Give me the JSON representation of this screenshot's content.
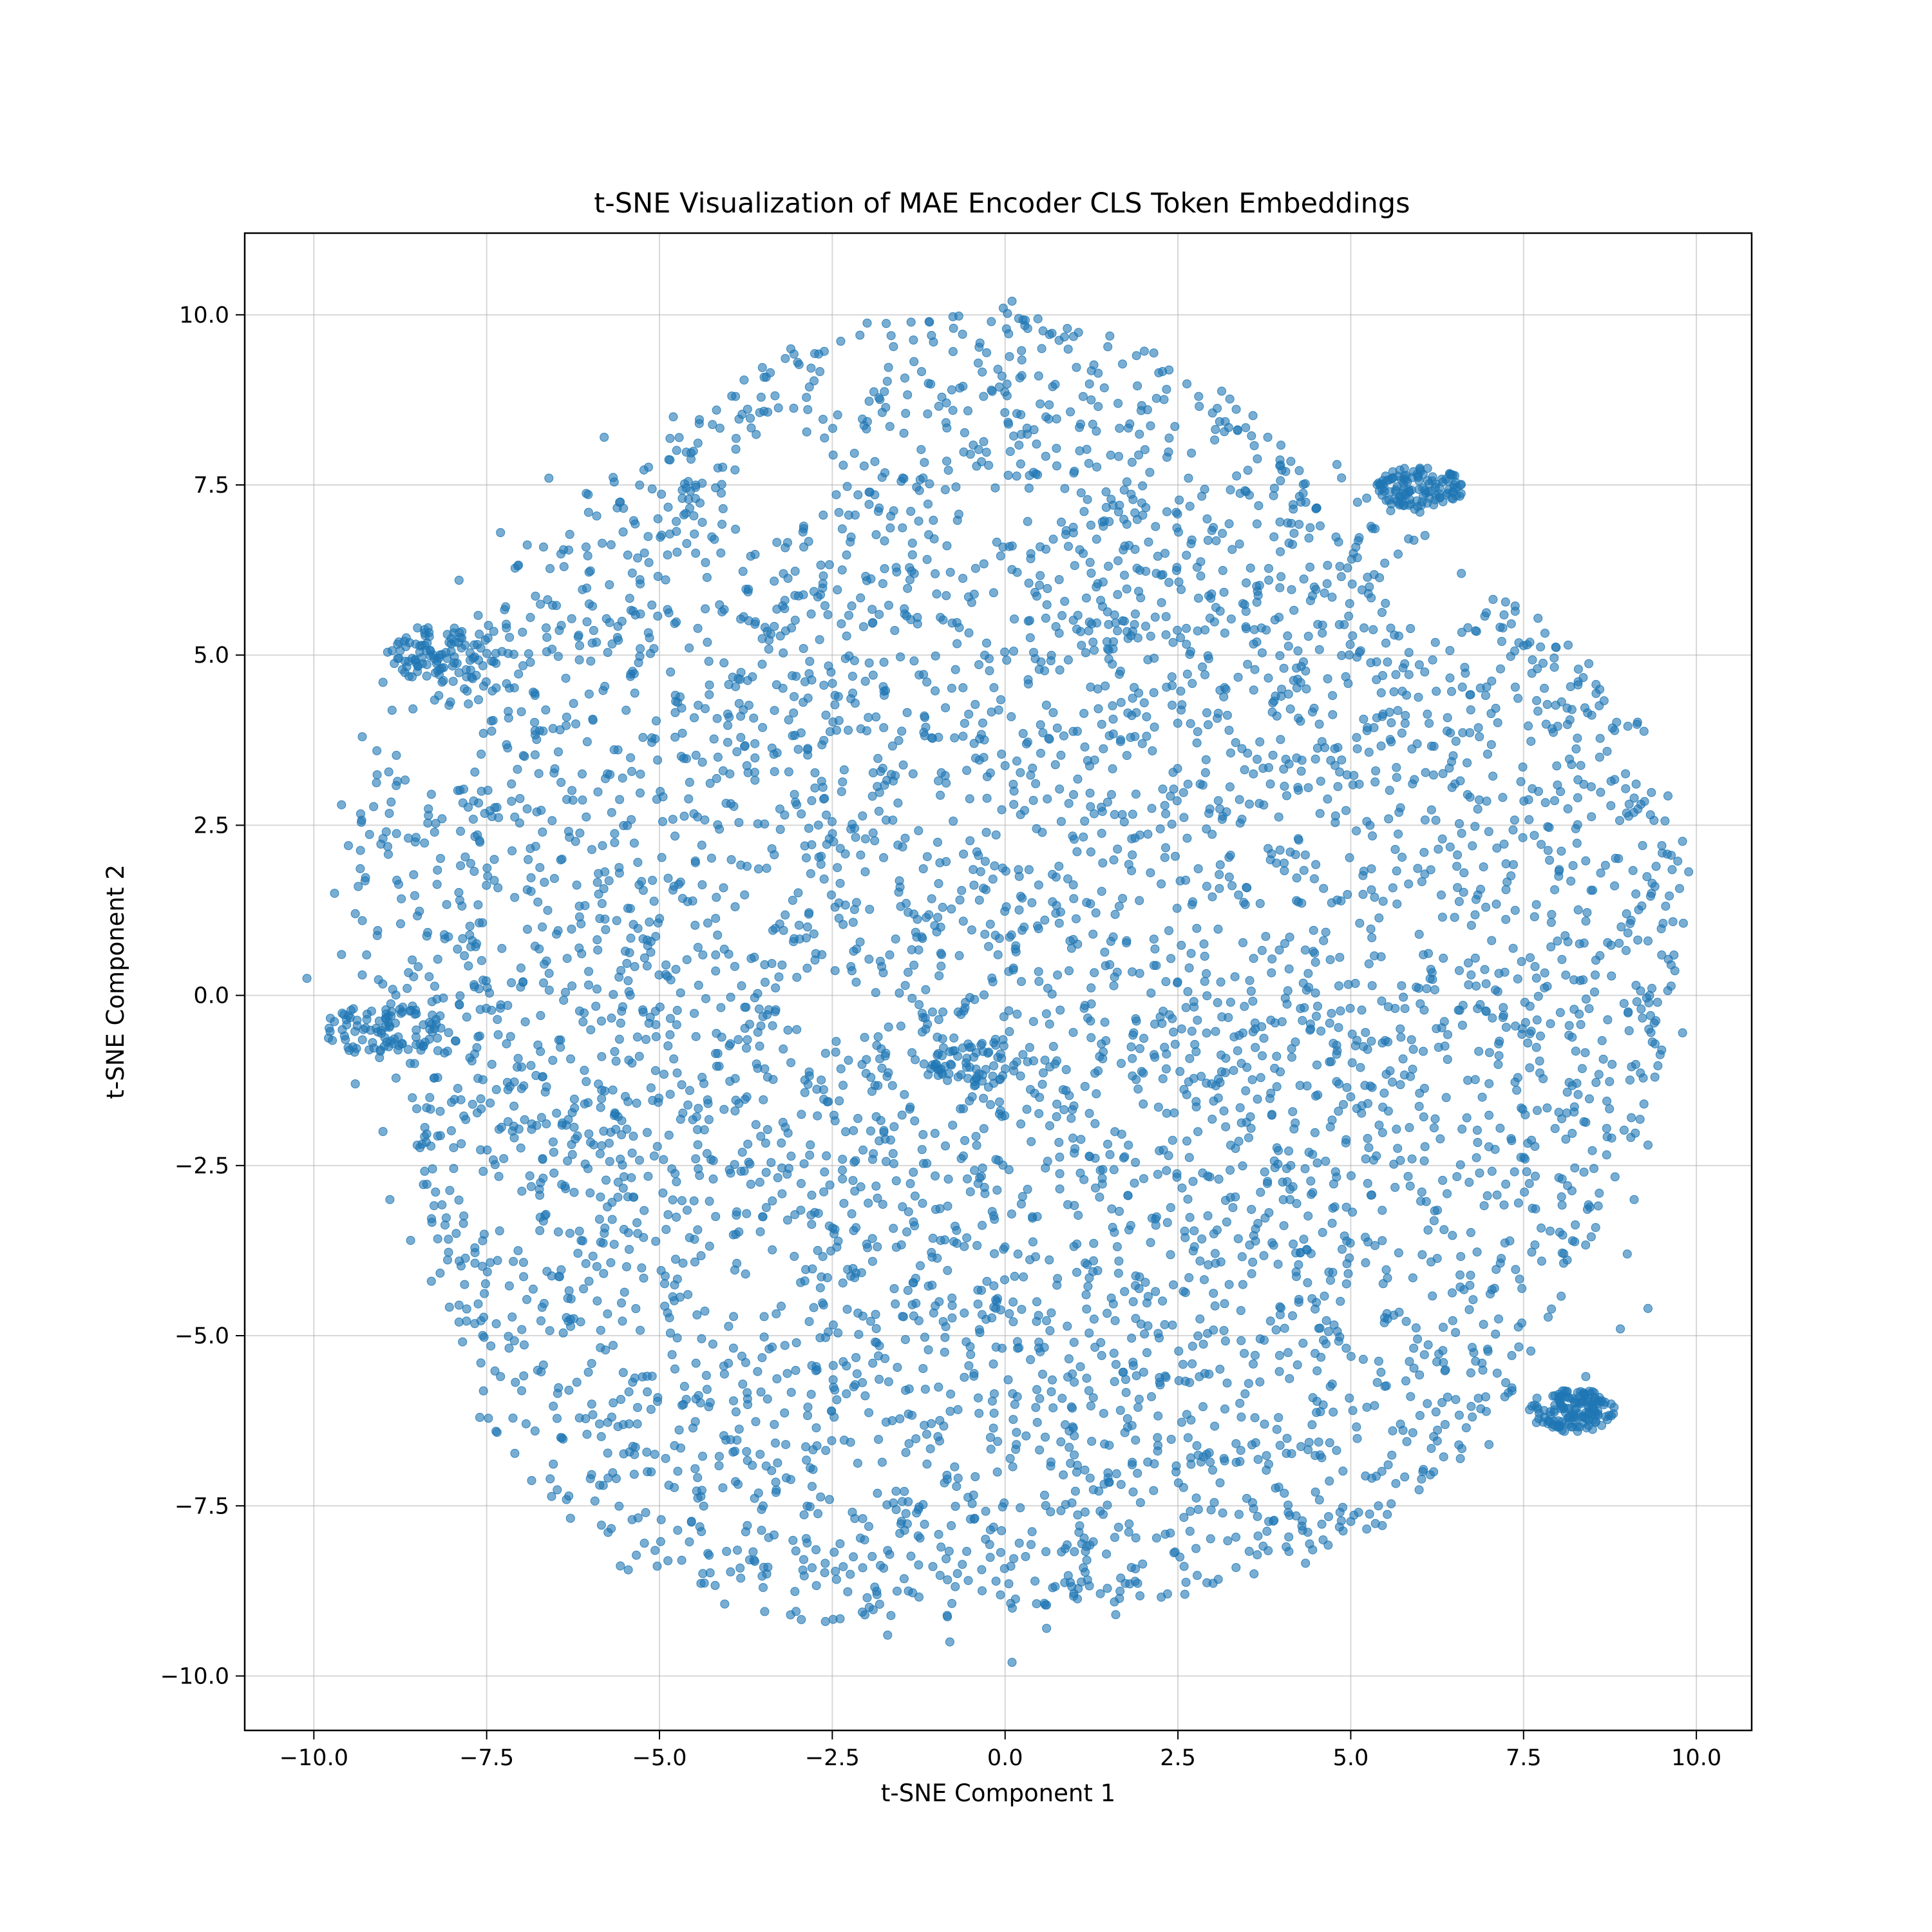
{
  "chart_data": {
    "type": "scatter",
    "title": "t-SNE Visualization of MAE Encoder CLS Token Embeddings",
    "xlabel": "t-SNE Component 1",
    "ylabel": "t-SNE Component 2",
    "xlim": [
      -11.0,
      10.8
    ],
    "ylim": [
      -10.8,
      11.2
    ],
    "xticks": [
      -10.0,
      -7.5,
      -5.0,
      -2.5,
      0.0,
      2.5,
      5.0,
      7.5,
      10.0
    ],
    "xtick_labels": [
      "−10.0",
      "−7.5",
      "−5.0",
      "−2.5",
      "0.0",
      "2.5",
      "5.0",
      "7.5",
      "10.0"
    ],
    "yticks": [
      -10.0,
      -7.5,
      -5.0,
      -2.5,
      0.0,
      2.5,
      5.0,
      7.5,
      10.0
    ],
    "ytick_labels": [
      "−10.0",
      "−7.5",
      "−5.0",
      "−2.5",
      "0.0",
      "2.5",
      "5.0",
      "7.5",
      "10.0"
    ],
    "grid": true,
    "marker_color": "#1f77b4",
    "marker_alpha": 0.6,
    "series": [
      {
        "points": [
          [
            -10.1,
            0.25
          ],
          [
            9.8,
            -0.55
          ],
          [
            0.1,
            -9.8
          ],
          [
            -7.6,
            -6.2
          ],
          [
            0.1,
            10.2
          ],
          [
            -9.7,
            1.5
          ],
          [
            -9.4,
            1.2
          ],
          [
            -9.6,
            0.6
          ],
          [
            -9.3,
            0.3
          ],
          [
            -9.5,
            -0.3
          ],
          [
            -9.2,
            -0.8
          ],
          [
            -9.4,
            -1.3
          ],
          [
            -9.0,
            -2.0
          ],
          [
            -8.9,
            -3.0
          ],
          [
            -8.6,
            -3.6
          ],
          [
            -8.3,
            -4.2
          ],
          [
            -7.9,
            -4.8
          ],
          [
            -7.3,
            -5.6
          ],
          [
            -6.8,
            -6.4
          ],
          [
            -6.0,
            -7.1
          ],
          [
            -5.2,
            -7.6
          ],
          [
            -4.3,
            -8.2
          ],
          [
            -3.5,
            -8.7
          ],
          [
            -2.6,
            -9.2
          ],
          [
            -1.7,
            -9.4
          ],
          [
            -0.8,
            -9.5
          ],
          [
            0.6,
            -9.3
          ],
          [
            1.6,
            -9.1
          ],
          [
            2.6,
            -8.8
          ],
          [
            3.6,
            -8.5
          ],
          [
            4.6,
            -8.0
          ],
          [
            5.4,
            -7.5
          ],
          [
            6.2,
            -7.0
          ],
          [
            7.0,
            -6.6
          ],
          [
            7.8,
            -6.2
          ],
          [
            8.4,
            -5.6
          ],
          [
            8.9,
            -4.9
          ],
          [
            9.3,
            -4.6
          ],
          [
            9.0,
            -3.8
          ],
          [
            9.1,
            -3.0
          ],
          [
            9.3,
            -2.2
          ],
          [
            9.4,
            -1.2
          ],
          [
            9.2,
            -0.2
          ],
          [
            9.3,
            0.8
          ],
          [
            9.4,
            1.6
          ],
          [
            9.5,
            2.2
          ],
          [
            9.1,
            2.9
          ],
          [
            8.6,
            3.5
          ],
          [
            8.2,
            4.2
          ],
          [
            7.7,
            4.8
          ],
          [
            7.2,
            5.4
          ],
          [
            6.6,
            6.2
          ],
          [
            6.0,
            7.1
          ],
          [
            5.6,
            7.6
          ],
          [
            4.8,
            7.8
          ],
          [
            3.8,
            8.2
          ],
          [
            2.8,
            8.8
          ],
          [
            1.9,
            9.4
          ],
          [
            0.9,
            9.8
          ],
          [
            -0.2,
            9.9
          ],
          [
            -1.1,
            9.9
          ],
          [
            -2.1,
            9.7
          ],
          [
            -3.1,
            9.5
          ],
          [
            -3.9,
            8.8
          ],
          [
            -4.8,
            8.5
          ],
          [
            -5.8,
            8.2
          ],
          [
            -6.6,
            7.6
          ],
          [
            -7.3,
            6.8
          ],
          [
            -7.9,
            6.1
          ],
          [
            -8.5,
            5.4
          ],
          [
            -9.0,
            4.6
          ],
          [
            -9.3,
            3.8
          ],
          [
            -9.6,
            2.8
          ],
          [
            -9.5,
            2.2
          ]
        ]
      }
    ]
  }
}
